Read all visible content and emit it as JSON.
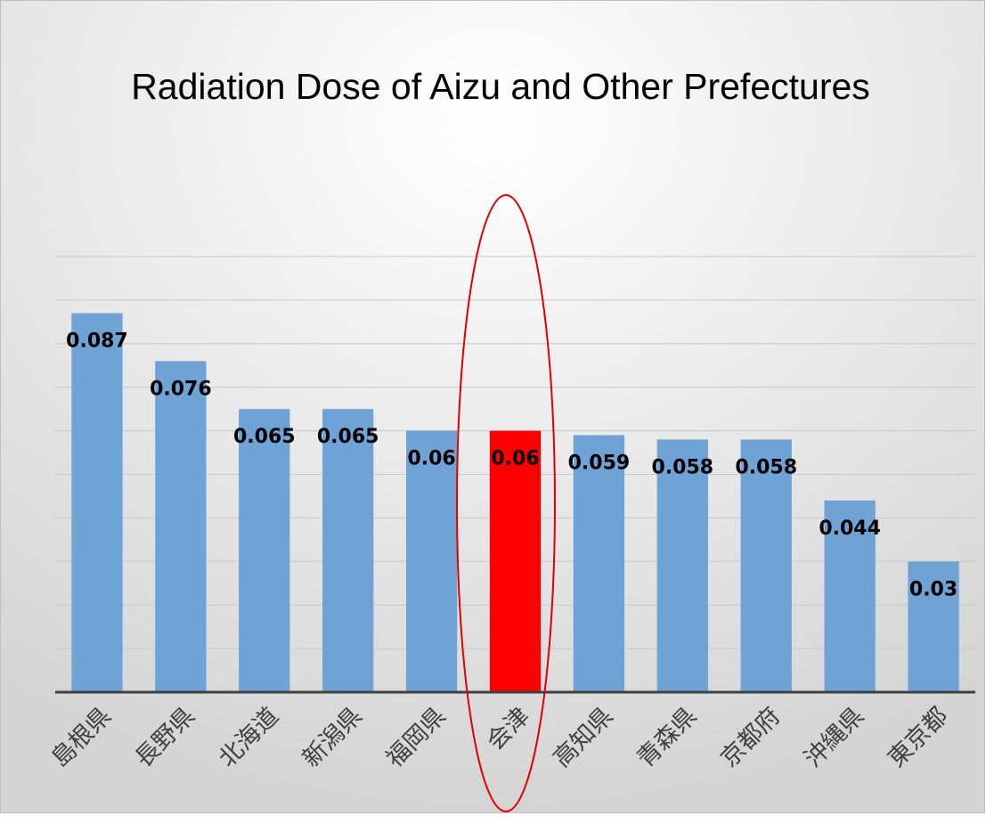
{
  "chart_data": {
    "type": "bar",
    "title": "Radiation Dose of Aizu and Other Prefectures",
    "categories": [
      "島根県",
      "長野県",
      "北海道",
      "新潟県",
      "福岡県",
      "会津",
      "高知県",
      "青森県",
      "京都府",
      "沖縄県",
      "東京都"
    ],
    "values": [
      0.087,
      0.076,
      0.065,
      0.065,
      0.06,
      0.06,
      0.059,
      0.058,
      0.058,
      0.044,
      0.03
    ],
    "colors": [
      "#6fa3d6",
      "#6fa3d6",
      "#6fa3d6",
      "#6fa3d6",
      "#6fa3d6",
      "#ff0000",
      "#6fa3d6",
      "#6fa3d6",
      "#6fa3d6",
      "#6fa3d6",
      "#6fa3d6"
    ],
    "ylim": [
      0,
      0.1
    ],
    "yticks": [
      0,
      0.01,
      0.02,
      0.03,
      0.04,
      0.05,
      0.06,
      0.07,
      0.08,
      0.09,
      0.1
    ],
    "grid": true
  }
}
